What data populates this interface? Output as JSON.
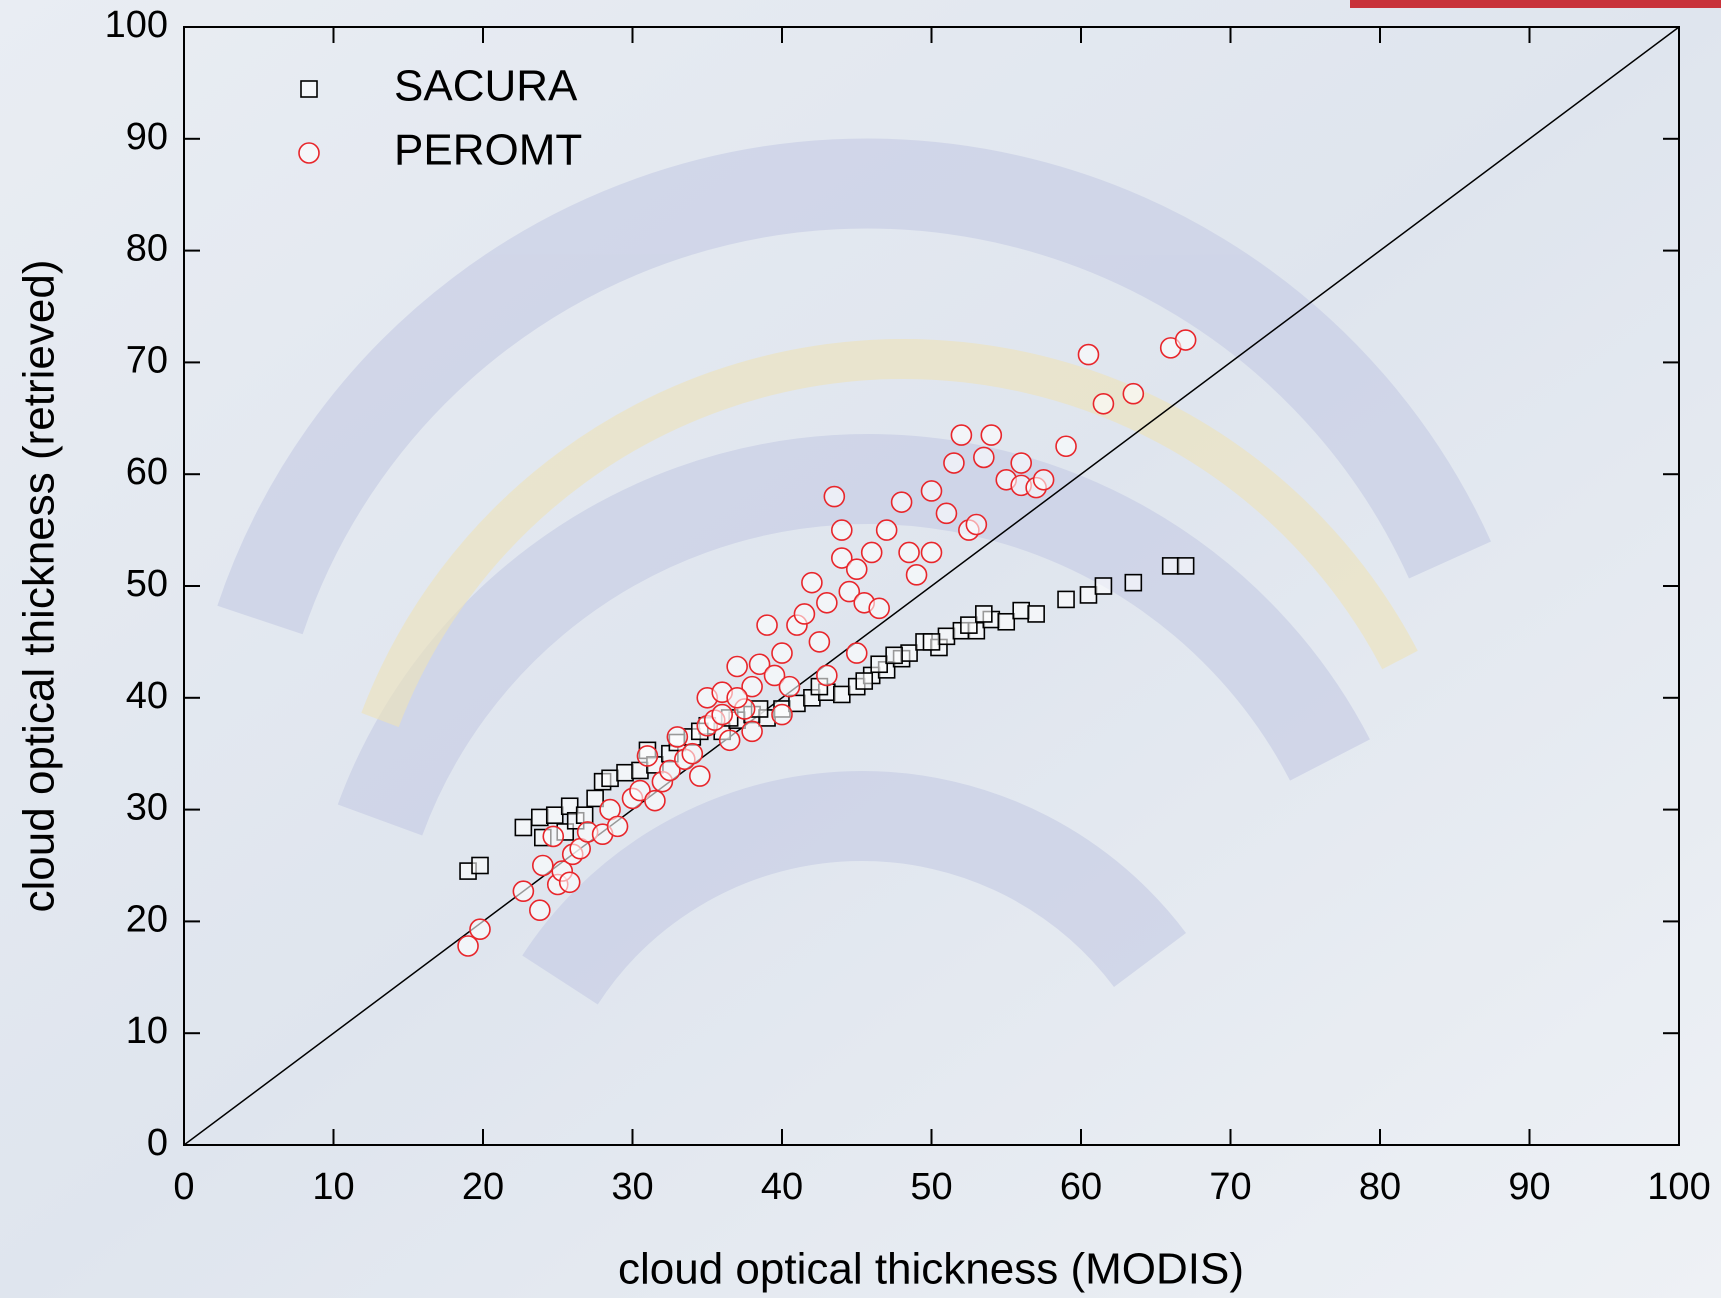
{
  "chart_data": {
    "type": "scatter",
    "xlabel": "cloud optical thickness (MODIS)",
    "ylabel": "cloud optical thickness (retrieved)",
    "xlim": [
      0,
      100
    ],
    "ylim": [
      0,
      100
    ],
    "xticks": [
      0,
      10,
      20,
      30,
      40,
      50,
      60,
      70,
      80,
      90,
      100
    ],
    "yticks": [
      0,
      10,
      20,
      30,
      40,
      50,
      60,
      70,
      80,
      90,
      100
    ],
    "legend": "upper left",
    "reference_line": {
      "color": "#000000",
      "x": [
        0,
        100
      ],
      "y": [
        0,
        100
      ]
    },
    "series": [
      {
        "name": "SACURA",
        "marker": "square",
        "color": "#000000",
        "x": [
          19,
          19.8,
          22.7,
          23.8,
          24,
          24.8,
          25.5,
          25.8,
          26.2,
          26.8,
          27.5,
          28,
          28.5,
          29.5,
          30.5,
          31,
          31.5,
          32.5,
          33,
          34,
          35,
          36,
          37,
          38,
          39,
          40,
          41,
          42,
          43,
          44,
          45,
          46,
          47,
          48,
          48.5,
          49.5,
          50.5,
          51,
          52,
          53,
          54,
          55,
          56,
          57,
          59,
          60.5,
          61.5,
          63.5,
          66,
          67,
          45.5,
          46.5,
          47.5,
          52.5,
          53.5,
          50,
          42.5,
          38.5,
          36.5,
          34.5
        ],
        "values": [
          24.5,
          25,
          28.4,
          29.3,
          27.5,
          29.5,
          28,
          30.3,
          29,
          29.5,
          31,
          32.5,
          32.8,
          33.3,
          33.5,
          35.3,
          34,
          35,
          36,
          36.5,
          37.5,
          37,
          38,
          38.5,
          38.2,
          39,
          39.5,
          40,
          40.5,
          40.3,
          41,
          42,
          42.5,
          43.5,
          44,
          45,
          44.5,
          45.5,
          46,
          46,
          47,
          46.8,
          47.8,
          47.5,
          48.8,
          49.2,
          50,
          50.3,
          51.8,
          51.8,
          41.5,
          43,
          43.8,
          46.5,
          47.5,
          45,
          41,
          39,
          38.2,
          37
        ]
      },
      {
        "name": "PEROMT",
        "marker": "circle",
        "color": "#e8262b",
        "x": [
          19,
          19.8,
          22.7,
          23.8,
          24,
          24.7,
          25,
          25.3,
          25.8,
          26,
          26.5,
          27,
          28,
          28.5,
          29,
          30,
          30.5,
          31,
          31.5,
          32,
          32.5,
          33,
          33.5,
          34,
          34.5,
          35,
          35,
          35.5,
          36,
          36.5,
          37,
          37.5,
          38,
          38.5,
          39,
          39.5,
          40,
          40.5,
          41,
          41.5,
          42,
          42.5,
          43,
          43.5,
          44,
          44,
          44.5,
          45,
          45.5,
          46,
          46.5,
          47,
          48,
          48.5,
          49,
          50,
          50,
          51,
          51.5,
          52,
          52.5,
          53,
          53.5,
          54,
          55,
          56,
          56,
          57,
          57.5,
          59,
          60.5,
          61.5,
          63.5,
          66,
          67,
          43,
          40,
          38,
          37,
          36,
          45
        ],
        "values": [
          17.8,
          19.3,
          22.7,
          21,
          25,
          27.6,
          23.3,
          24.5,
          23.5,
          26,
          26.5,
          28,
          27.8,
          30,
          28.5,
          31,
          31.7,
          34.8,
          30.8,
          32.5,
          33.5,
          36.5,
          34.5,
          35,
          33,
          37.5,
          40,
          38,
          40.5,
          36.2,
          42.8,
          39,
          41,
          43,
          46.5,
          42,
          44,
          41,
          46.5,
          47.5,
          50.3,
          45,
          48.5,
          58,
          52.5,
          55,
          49.5,
          51.5,
          48.5,
          53,
          48,
          55,
          57.5,
          53,
          51,
          53,
          58.5,
          56.5,
          61,
          63.5,
          55,
          55.5,
          61.5,
          63.5,
          59.5,
          61,
          59,
          58.8,
          59.5,
          62.5,
          70.7,
          66.3,
          67.2,
          71.3,
          72,
          42,
          38.5,
          37,
          40,
          38.5,
          44
        ]
      }
    ]
  }
}
